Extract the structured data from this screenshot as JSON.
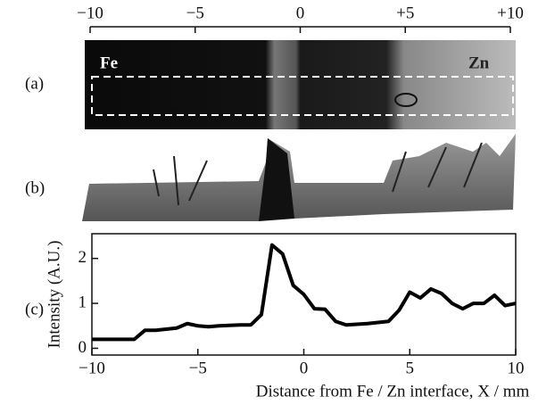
{
  "figure": {
    "panel_labels": [
      "(a)",
      "(b)",
      "(c)"
    ],
    "image_labels": [
      "Fe",
      "Zn"
    ],
    "top_axis": {
      "xlim": [
        -10,
        10
      ],
      "xticks": [
        {
          "value": -10,
          "label": "−10"
        },
        {
          "value": -5,
          "label": "−5"
        },
        0,
        {
          "value": 5,
          "label": "+5"
        },
        {
          "value": 10,
          "label": "+10"
        }
      ]
    }
  },
  "chart_data": {
    "type": "line",
    "xlabel": "Distance from Fe / Zn interface, X / mm",
    "ylabel": "Intensity (A.U.)",
    "x": [
      -10,
      -8,
      -7.5,
      -7,
      -6,
      -5.5,
      -5,
      -4.5,
      -4,
      -3,
      -2.5,
      -2,
      -1.5,
      -1,
      -0.5,
      0,
      0.5,
      1,
      1.5,
      2,
      3,
      4,
      4.5,
      5,
      5.5,
      6,
      6.5,
      7,
      7.5,
      8,
      8.5,
      9,
      9.5,
      10
    ],
    "values": [
      0.2,
      0.2,
      0.4,
      0.4,
      0.45,
      0.55,
      0.5,
      0.48,
      0.5,
      0.52,
      0.52,
      0.75,
      2.3,
      2.1,
      1.4,
      1.2,
      0.88,
      0.87,
      0.6,
      0.52,
      0.55,
      0.6,
      0.85,
      1.25,
      1.12,
      1.32,
      1.22,
      1.0,
      0.88,
      1.0,
      1.0,
      1.18,
      0.95,
      1.0
    ],
    "color": "#000000",
    "xlim": [
      -10,
      10
    ],
    "ylim": [
      -0.15,
      2.55
    ],
    "xticks": [
      {
        "value": -10,
        "label": "−10"
      },
      {
        "value": -5,
        "label": "−5"
      },
      0,
      5,
      10
    ],
    "yticks": [
      0,
      1,
      2
    ]
  }
}
